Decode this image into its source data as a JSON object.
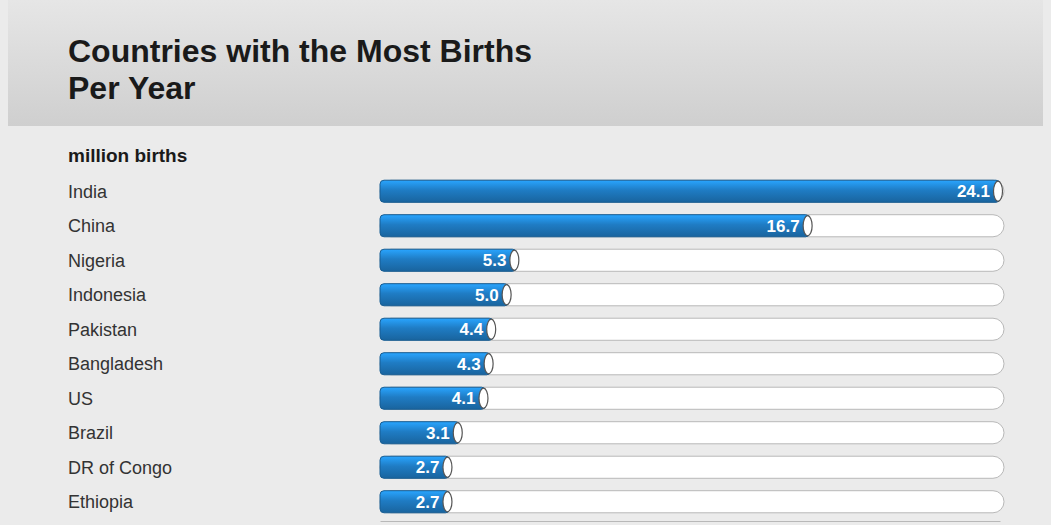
{
  "chart_data": {
    "type": "bar",
    "orientation": "horizontal",
    "title": "Countries with the Most Births Per Year",
    "subtitle": "million births",
    "categories": [
      "India",
      "China",
      "Nigeria",
      "Indonesia",
      "Pakistan",
      "Bangladesh",
      "US",
      "Brazil",
      "DR of Congo",
      "Ethiopia"
    ],
    "values": [
      24.1,
      16.7,
      5.3,
      5.0,
      4.4,
      4.3,
      4.1,
      3.1,
      2.7,
      2.7
    ],
    "value_labels": [
      "24.1",
      "16.7",
      "5.3",
      "5.0",
      "4.4",
      "4.3",
      "4.1",
      "3.1",
      "2.7",
      "2.7"
    ],
    "color": "#1f7cc4",
    "xlim": [
      0,
      24.1
    ],
    "xticks": [],
    "data_labels": true,
    "tick_labels": false,
    "grid": false
  }
}
